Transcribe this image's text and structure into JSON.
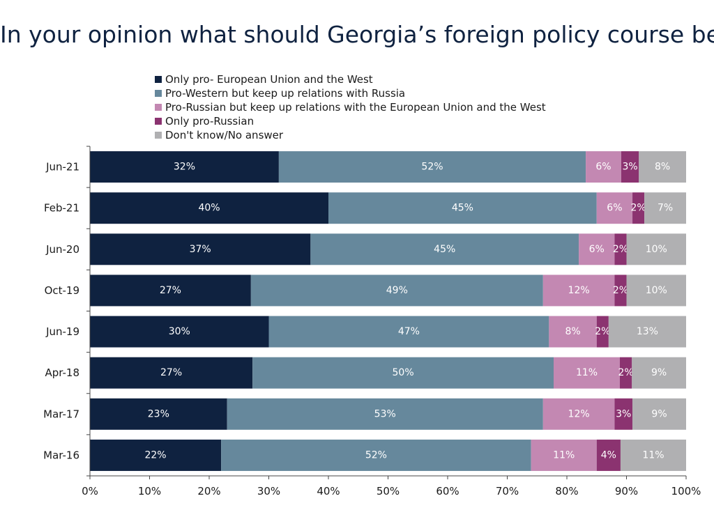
{
  "chart_data": {
    "type": "bar",
    "orientation": "horizontal",
    "stacked": true,
    "title": "In your opinion what should Georgia’s foreign policy course be?",
    "categories": [
      "Jun-21",
      "Feb-21",
      "Jun-20",
      "Oct-19",
      "Jun-19",
      "Apr-18",
      "Mar-17",
      "Mar-16"
    ],
    "series": [
      {
        "name": "Only pro- European Union and the West",
        "color": "#0f2240",
        "values": [
          32,
          40,
          37,
          27,
          30,
          27,
          23,
          22
        ]
      },
      {
        "name": "Pro-Western but keep up relations with Russia",
        "color": "#66889c",
        "values": [
          52,
          45,
          45,
          49,
          47,
          50,
          53,
          52
        ]
      },
      {
        "name": "Pro-Russian but keep up relations with the European Union and the West",
        "color": "#c388b2",
        "values": [
          6,
          6,
          6,
          12,
          8,
          11,
          12,
          11
        ]
      },
      {
        "name": "Only pro-Russian",
        "color": "#8b3370",
        "values": [
          3,
          2,
          2,
          2,
          2,
          2,
          3,
          4
        ]
      },
      {
        "name": "Don't know/No answer",
        "color": "#b0b0b2",
        "values": [
          8,
          7,
          10,
          10,
          13,
          9,
          9,
          11
        ]
      }
    ],
    "xlim": [
      0,
      100
    ],
    "xticks": [
      "0%",
      "10%",
      "20%",
      "30%",
      "40%",
      "50%",
      "60%",
      "70%",
      "80%",
      "90%",
      "100%"
    ],
    "legend_position": "top",
    "grid": false,
    "value_suffix": "%"
  }
}
